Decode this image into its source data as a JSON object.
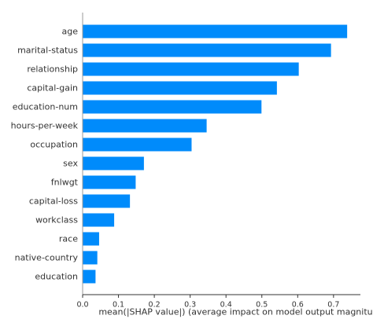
{
  "chart_data": {
    "type": "bar",
    "orientation": "horizontal",
    "categories": [
      "age",
      "marital-status",
      "relationship",
      "capital-gain",
      "education-num",
      "hours-per-week",
      "occupation",
      "sex",
      "fnlwgt",
      "capital-loss",
      "workclass",
      "race",
      "native-country",
      "education"
    ],
    "values": [
      0.738,
      0.693,
      0.603,
      0.542,
      0.499,
      0.346,
      0.304,
      0.171,
      0.148,
      0.132,
      0.088,
      0.046,
      0.041,
      0.036
    ],
    "xlabel": "mean(|SHAP value|) (average impact on model output magnitude)",
    "ylabel": "",
    "xlim": [
      0,
      0.775
    ],
    "xticks": [
      "0.0",
      "0.1",
      "0.2",
      "0.3",
      "0.4",
      "0.5",
      "0.6",
      "0.7"
    ],
    "grid": false,
    "bar_color": "#008bfb"
  }
}
